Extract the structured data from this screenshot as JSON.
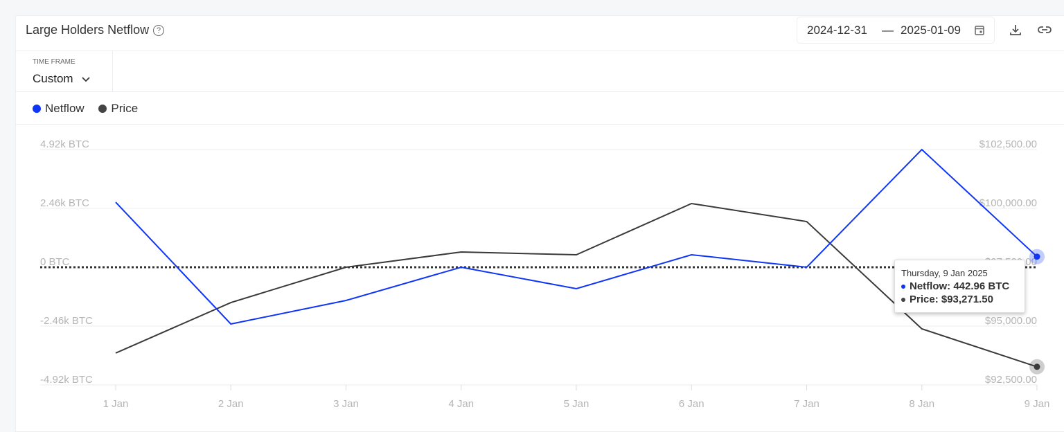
{
  "header": {
    "title": "Large Holders Netflow",
    "help_icon": "?",
    "date_from": "2024-12-31",
    "date_sep": "—",
    "date_to": "2025-01-09"
  },
  "timeframe": {
    "label": "TIME FRAME",
    "value": "Custom"
  },
  "colors": {
    "netflow": "#1036f5",
    "price": "#3a3a3a"
  },
  "chart_data": {
    "type": "line",
    "title": "Large Holders Netflow",
    "categories": [
      "1 Jan",
      "2 Jan",
      "3 Jan",
      "4 Jan",
      "5 Jan",
      "6 Jan",
      "7 Jan",
      "8 Jan",
      "9 Jan"
    ],
    "series": [
      {
        "name": "Netflow",
        "axis": "left",
        "values": [
          2720,
          -2373,
          -1389,
          0,
          -897,
          521,
          0,
          4920,
          442.96
        ]
      },
      {
        "name": "Price",
        "axis": "right",
        "values": [
          93853,
          95999,
          97500,
          98147,
          98029,
          100206,
          99441,
          94882,
          93271.5
        ]
      }
    ],
    "left_axis": {
      "ylim": [
        -4920,
        4920
      ],
      "ticks": [
        4920,
        2460,
        0,
        -2460,
        -4920
      ],
      "tick_labels": [
        "4.92k BTC",
        "2.46k BTC",
        "0 BTC",
        "-2.46k BTC",
        "-4.92k BTC"
      ]
    },
    "right_axis": {
      "ylim": [
        92500,
        102500
      ],
      "ticks": [
        102500,
        100000,
        97500,
        95000,
        92500
      ],
      "tick_labels": [
        "$102,500.00",
        "$100,000.00",
        "$97,500.00",
        "$95,000.00",
        "$92,500.00"
      ]
    },
    "legend": [
      "Netflow",
      "Price"
    ],
    "legend_placement": "top-left",
    "tooltip": {
      "date": "Thursday, 9 Jan 2025",
      "netflow": "Netflow: 442.96 BTC",
      "price": "Price: $93,271.50"
    }
  }
}
